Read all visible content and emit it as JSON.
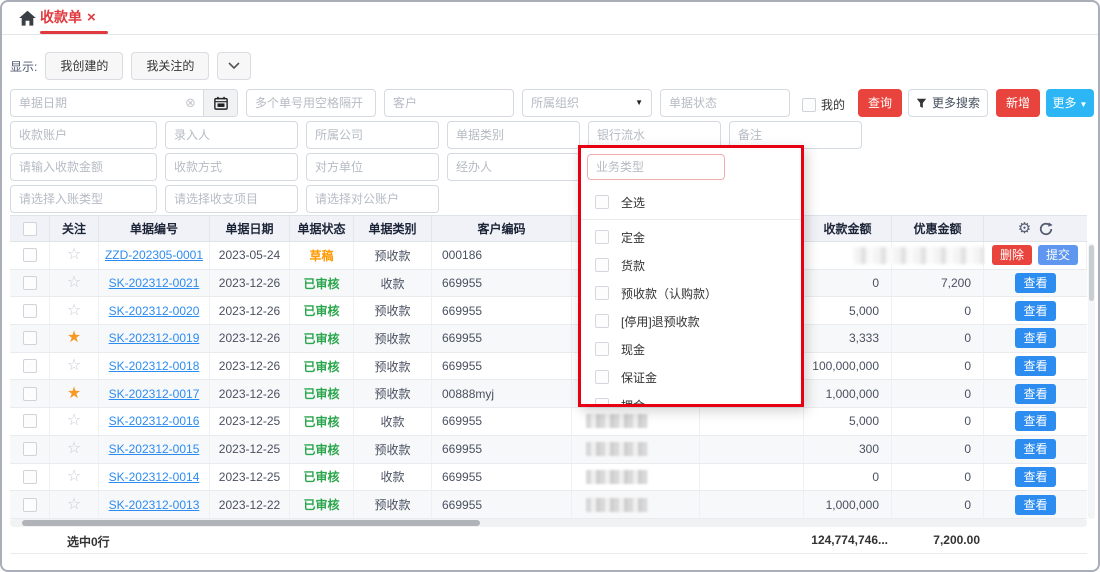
{
  "window": {
    "tab": "收款单",
    "close": "×"
  },
  "toolbar": {
    "display_label": "显示:",
    "my_created": "我创建的",
    "my_followed": "我关注的"
  },
  "filters": {
    "bill_date": "单据日期",
    "multi_no": "多个单号用空格隔开",
    "customer": "客户",
    "org": "所属组织",
    "bill_status": "单据状态",
    "mine": "我的",
    "query": "查询",
    "more_search": "更多搜索",
    "add": "新增",
    "more": "更多",
    "account": "收款账户",
    "entry_person": "录入人",
    "company": "所属公司",
    "bill_category": "单据类别",
    "bank_flow": "银行流水",
    "remark": "备注",
    "amount": "请输入收款金额",
    "pay_method": "收款方式",
    "counterparty": "对方单位",
    "handler": "经办人",
    "entry_type": "请选择入账类型",
    "income_item": "请选择收支项目",
    "public_account": "请选择对公账户"
  },
  "dropdown": {
    "placeholder": "业务类型",
    "select_all": "全选",
    "options": [
      "定金",
      "货款",
      "预收款（认购款）",
      "[停用]退预收款",
      "现金",
      "保证金",
      "押金"
    ]
  },
  "table": {
    "headers": {
      "follow": "关注",
      "no": "单据编号",
      "date": "单据日期",
      "status": "单据状态",
      "category": "单据类别",
      "customer_code": "客户编码",
      "amount": "收款金额",
      "discount": "优惠金额"
    },
    "actions": {
      "view": "查看",
      "delete": "删除",
      "submit": "提交"
    },
    "rows": [
      {
        "no": "ZZD-202305-0001",
        "date": "2023-05-24",
        "status": "草稿",
        "status_type": "draft",
        "category": "预收款",
        "code": "000186",
        "amount": "",
        "discount": "",
        "starred": false,
        "redacted_amounts": true,
        "actions": [
          "delete",
          "submit"
        ]
      },
      {
        "no": "SK-202312-0021",
        "date": "2023-12-26",
        "status": "已审核",
        "status_type": "approved",
        "category": "收款",
        "code": "669955",
        "amount": "0",
        "discount": "7,200",
        "starred": false,
        "redacted_amounts": false,
        "actions": [
          "view"
        ]
      },
      {
        "no": "SK-202312-0020",
        "date": "2023-12-26",
        "status": "已审核",
        "status_type": "approved",
        "category": "预收款",
        "code": "669955",
        "amount": "5,000",
        "discount": "0",
        "starred": false,
        "redacted_amounts": false,
        "actions": [
          "view"
        ]
      },
      {
        "no": "SK-202312-0019",
        "date": "2023-12-26",
        "status": "已审核",
        "status_type": "approved",
        "category": "预收款",
        "code": "669955",
        "amount": "3,333",
        "discount": "0",
        "starred": true,
        "redacted_amounts": false,
        "actions": [
          "view"
        ]
      },
      {
        "no": "SK-202312-0018",
        "date": "2023-12-26",
        "status": "已审核",
        "status_type": "approved",
        "category": "预收款",
        "code": "669955",
        "amount": "100,000,000",
        "discount": "0",
        "starred": false,
        "redacted_amounts": false,
        "actions": [
          "view"
        ]
      },
      {
        "no": "SK-202312-0017",
        "date": "2023-12-26",
        "status": "已审核",
        "status_type": "approved",
        "category": "预收款",
        "code": "00888myj",
        "amount": "1,000,000",
        "discount": "0",
        "starred": true,
        "redacted_amounts": false,
        "actions": [
          "view"
        ]
      },
      {
        "no": "SK-202312-0016",
        "date": "2023-12-25",
        "status": "已审核",
        "status_type": "approved",
        "category": "收款",
        "code": "669955",
        "amount": "5,000",
        "discount": "0",
        "starred": false,
        "redacted_amounts": false,
        "actions": [
          "view"
        ]
      },
      {
        "no": "SK-202312-0015",
        "date": "2023-12-25",
        "status": "已审核",
        "status_type": "approved",
        "category": "预收款",
        "code": "669955",
        "amount": "300",
        "discount": "0",
        "starred": false,
        "redacted_amounts": false,
        "actions": [
          "view"
        ]
      },
      {
        "no": "SK-202312-0014",
        "date": "2023-12-25",
        "status": "已审核",
        "status_type": "approved",
        "category": "收款",
        "code": "669955",
        "amount": "0",
        "discount": "0",
        "starred": false,
        "redacted_amounts": false,
        "actions": [
          "view"
        ]
      },
      {
        "no": "SK-202312-0013",
        "date": "2023-12-22",
        "status": "已审核",
        "status_type": "approved",
        "category": "预收款",
        "code": "669955",
        "amount": "1,000,000",
        "discount": "0",
        "starred": false,
        "redacted_amounts": false,
        "actions": [
          "view"
        ]
      }
    ],
    "footer": {
      "selected": "选中0行",
      "amount_total": "124,774,746...",
      "discount_total": "7,200.00"
    }
  },
  "colors": {
    "accent_red": "#e8433c",
    "info_blue": "#2cb6f5",
    "link_blue": "#2d8cf0",
    "status_green": "#2aa64c",
    "status_orange": "#ff9900",
    "highlight_border": "#e60012"
  }
}
